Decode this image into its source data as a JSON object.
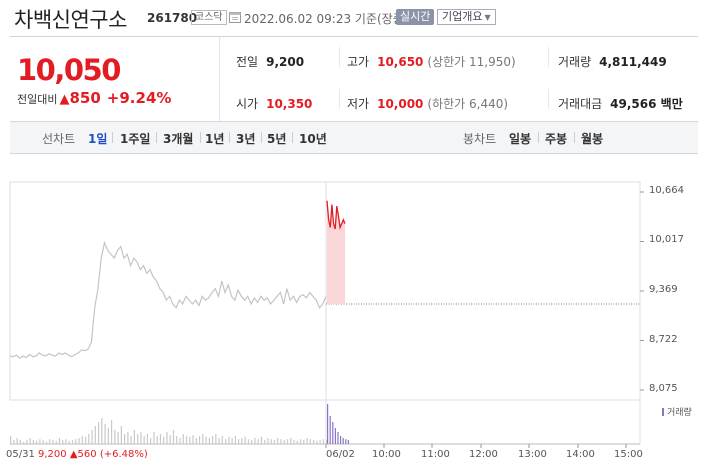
{
  "header": {
    "stock_name": "차백신연구소",
    "stock_code": "261780",
    "market": "코스닥",
    "date": "2022.06.02 09:23 기준(장중)",
    "realtime_label": "실시간",
    "overview_label": "기업개요",
    "overview_icon": "chevron-down-icon"
  },
  "summary": {
    "current_price": "10,050",
    "change_label": "전일대비",
    "change_arrow": "▲",
    "change_value": "850",
    "change_rate": "+9.24%",
    "prev_close": {
      "label": "전일",
      "value": "9,200"
    },
    "open": {
      "label": "시가",
      "value": "10,350"
    },
    "high": {
      "label": "고가",
      "value": "10,650",
      "sub": "(상한가 11,950)"
    },
    "low": {
      "label": "저가",
      "value": "10,000",
      "sub": "(하한가 6,440)"
    },
    "volume": {
      "label": "거래량",
      "value": "4,811,449"
    },
    "amount": {
      "label": "거래대금",
      "value": "49,566 백만"
    },
    "up_color": "#e31c23",
    "down_color": "#1e4fc8"
  },
  "tabs": {
    "line_label": "선차트",
    "line_tabs": [
      "1일",
      "1주일",
      "3개월",
      "1년",
      "3년",
      "5년",
      "10년"
    ],
    "active_tab": "1일",
    "candle_label": "봉차트",
    "candle_tabs": [
      "일봉",
      "주봉",
      "월봉"
    ]
  },
  "chart": {
    "summary_date": "05/31",
    "summary_price": "9,200",
    "summary_arrow": "▲",
    "summary_change": "560",
    "summary_rate": "(+6.48%)",
    "volume_legend": "거래량"
  },
  "chart_data": {
    "type": "line",
    "ylim": [
      8075,
      10664
    ],
    "yticks": [
      "10,664",
      "10,017",
      "9,369",
      "8,722",
      "8,075"
    ],
    "xticks": [
      "05/31",
      "06/02",
      "10:00",
      "11:00",
      "12:00",
      "13:00",
      "14:00",
      "15:00"
    ],
    "reference_price": 9200,
    "series": [
      {
        "values": [
          8520,
          8510,
          8530,
          8490,
          8520,
          8500,
          8540,
          8510,
          8520,
          8560,
          8530,
          8520,
          8550,
          8530,
          8520,
          8560,
          8540,
          8560,
          8530,
          8510,
          8540,
          8560,
          8600,
          8590,
          8610,
          8700,
          9150,
          9400,
          9800,
          10000,
          9900,
          9850,
          9800,
          9900,
          9950,
          9800,
          9850,
          9700,
          9800,
          9750,
          9650,
          9700,
          9600,
          9650,
          9550,
          9500,
          9400,
          9350,
          9250,
          9300,
          9200,
          9150,
          9250,
          9200,
          9300,
          9250,
          9200,
          9250,
          9180,
          9300,
          9250,
          9280,
          9350,
          9400,
          9300,
          9500,
          9350,
          9450,
          9300,
          9250,
          9380,
          9300,
          9250,
          9300,
          9200,
          9280,
          9220,
          9300,
          9250,
          9280,
          9200,
          9250,
          9300,
          9350,
          9200,
          9400,
          9250,
          9300,
          9220,
          9300,
          9320,
          9280,
          9350,
          9300,
          9250,
          9150,
          9200,
          9300
        ]
      },
      {
        "values": [
          10550,
          10300,
          10200,
          10500,
          10250,
          10180,
          10480,
          10350,
          10200,
          10250,
          10300,
          10250
        ]
      }
    ],
    "volume": [
      0.2,
      0.1,
      0.15,
      0.1,
      0.05,
      0.1,
      0.15,
      0.1,
      0.08,
      0.12,
      0.1,
      0.06,
      0.12,
      0.1,
      0.08,
      0.15,
      0.1,
      0.12,
      0.08,
      0.1,
      0.12,
      0.15,
      0.2,
      0.18,
      0.25,
      0.35,
      0.45,
      0.55,
      0.65,
      0.5,
      0.4,
      0.6,
      0.35,
      0.3,
      0.45,
      0.25,
      0.3,
      0.2,
      0.35,
      0.25,
      0.3,
      0.2,
      0.25,
      0.15,
      0.3,
      0.2,
      0.25,
      0.18,
      0.3,
      0.22,
      0.35,
      0.2,
      0.15,
      0.25,
      0.2,
      0.18,
      0.22,
      0.15,
      0.2,
      0.25,
      0.18,
      0.15,
      0.2,
      0.25,
      0.15,
      0.2,
      0.12,
      0.18,
      0.15,
      0.2,
      0.12,
      0.15,
      0.18,
      0.12,
      0.1,
      0.15,
      0.12,
      0.18,
      0.1,
      0.15,
      0.12,
      0.1,
      0.15,
      0.12,
      0.1,
      0.12,
      0.15,
      0.1,
      0.08,
      0.12,
      0.1,
      0.15,
      0.12,
      0.1,
      0.08,
      0.1,
      0.12,
      0.1,
      1.0,
      0.7,
      0.55,
      0.4,
      0.3,
      0.2,
      0.15,
      0.12,
      0.1
    ],
    "grid": false
  }
}
